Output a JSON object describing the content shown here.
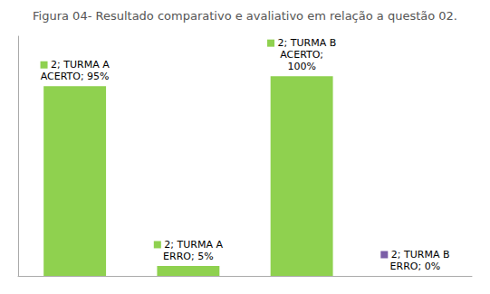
{
  "chart_data": {
    "type": "bar",
    "title": "Figura 04- Resultado comparativo e avaliativo em relação a questão 02.",
    "categories": [
      null,
      null,
      null,
      null
    ],
    "values": [
      95,
      5,
      100,
      0
    ],
    "value_labels": [
      "2; TURMA A\nACERTO; 95%",
      "2; TURMA A\nERRO; 5%",
      "2; TURMA B\nACERTO;\n100%",
      "2; TURMA B\nERRO; 0%"
    ],
    "colors": [
      "#8fd14f",
      "#8fd14f",
      "#8fd14f",
      "#7b5ea7"
    ],
    "ylim": [
      0,
      120
    ],
    "data_labels": true,
    "tick_labels": false,
    "grid": false
  }
}
